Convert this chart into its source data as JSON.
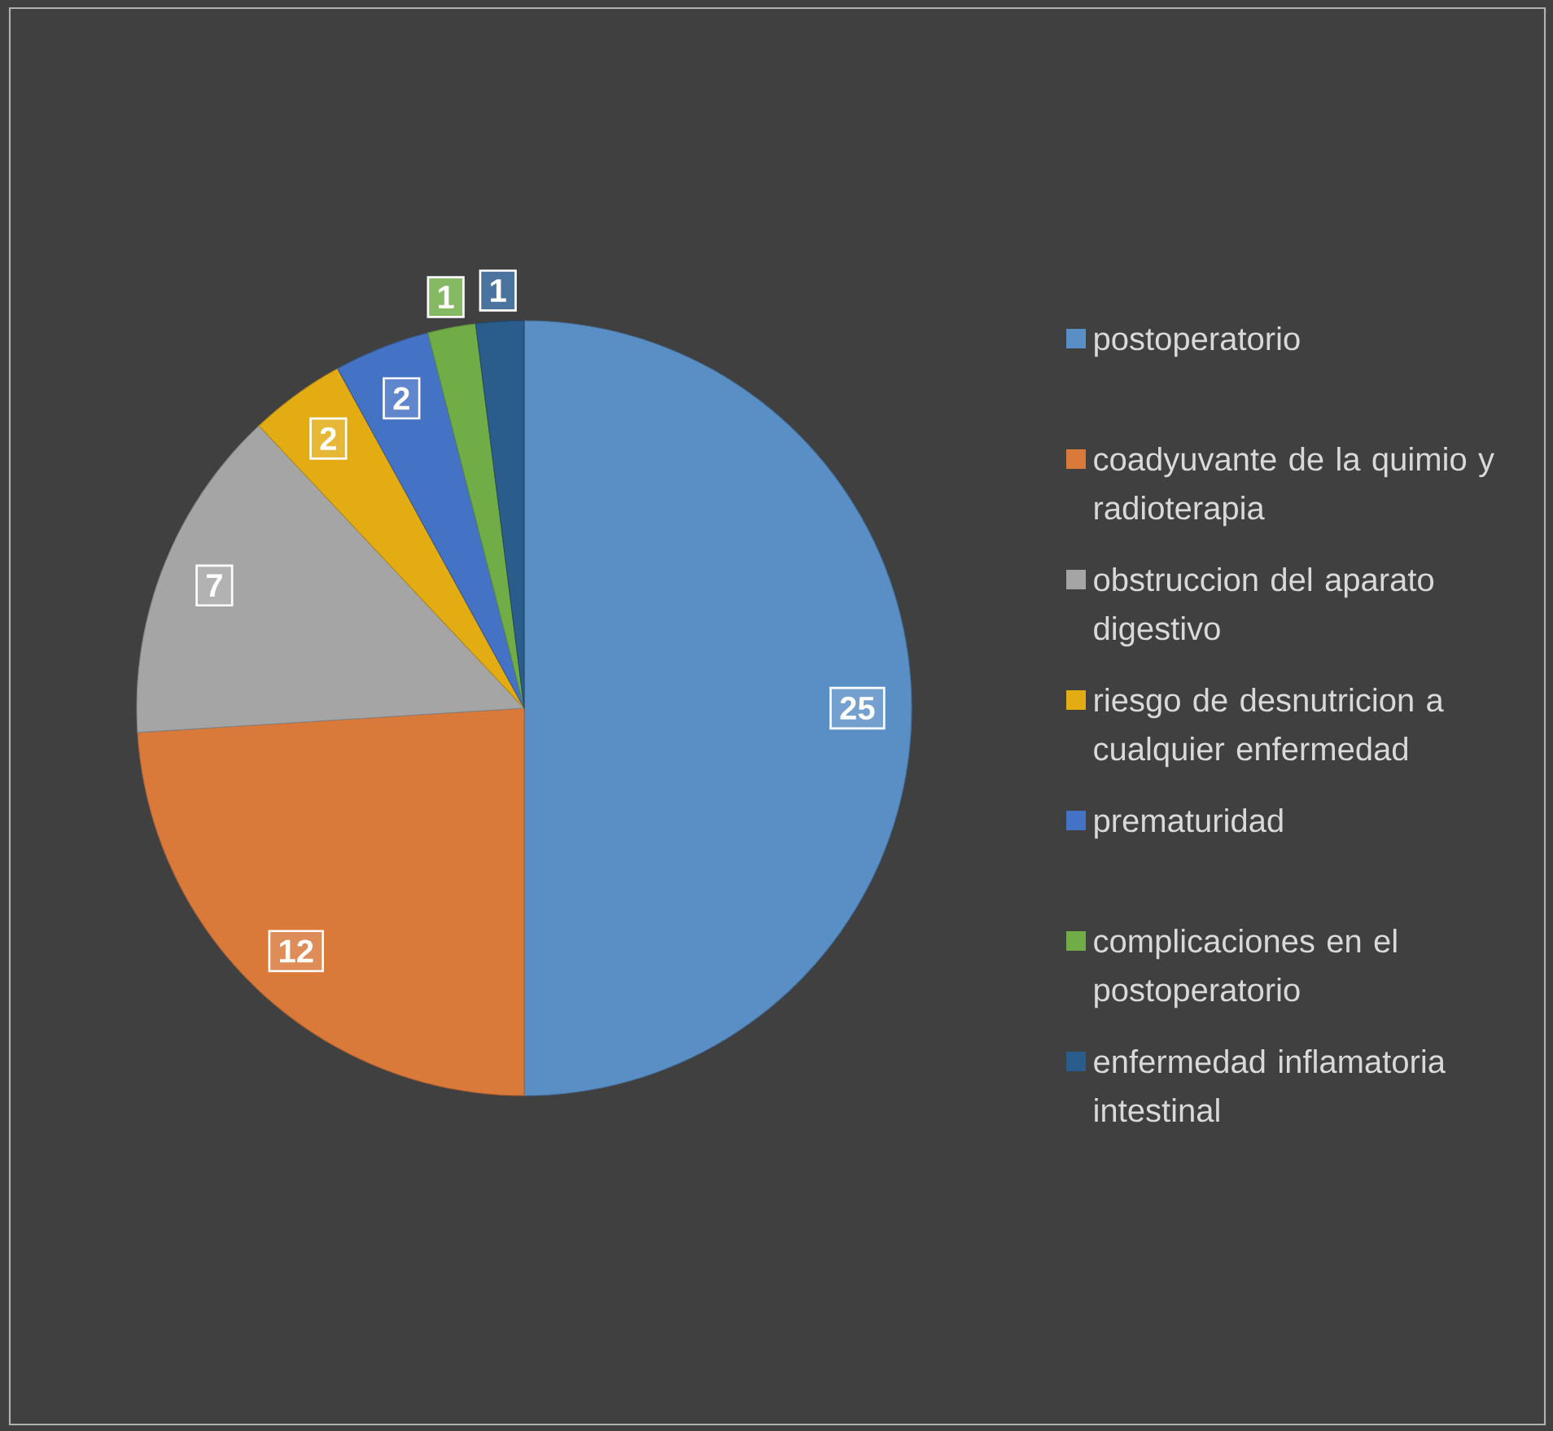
{
  "chart_data": {
    "type": "pie",
    "categories": [
      "postoperatorio",
      "coadyuvante de la quimio y radioterapia",
      "obstruccion del aparato digestivo",
      "riesgo de desnutricion a cualquier enfermedad",
      "prematuridad",
      "complicaciones en el postoperatorio",
      "enfermedad inflamatoria intestinal"
    ],
    "values": [
      25,
      12,
      7,
      2,
      2,
      1,
      1
    ],
    "colors": [
      "#5a8fc6",
      "#d9793a",
      "#a5a5a5",
      "#e3ac13",
      "#4472c4",
      "#70ad47",
      "#2a5c8c"
    ],
    "data_labels": true,
    "legend": "right"
  }
}
